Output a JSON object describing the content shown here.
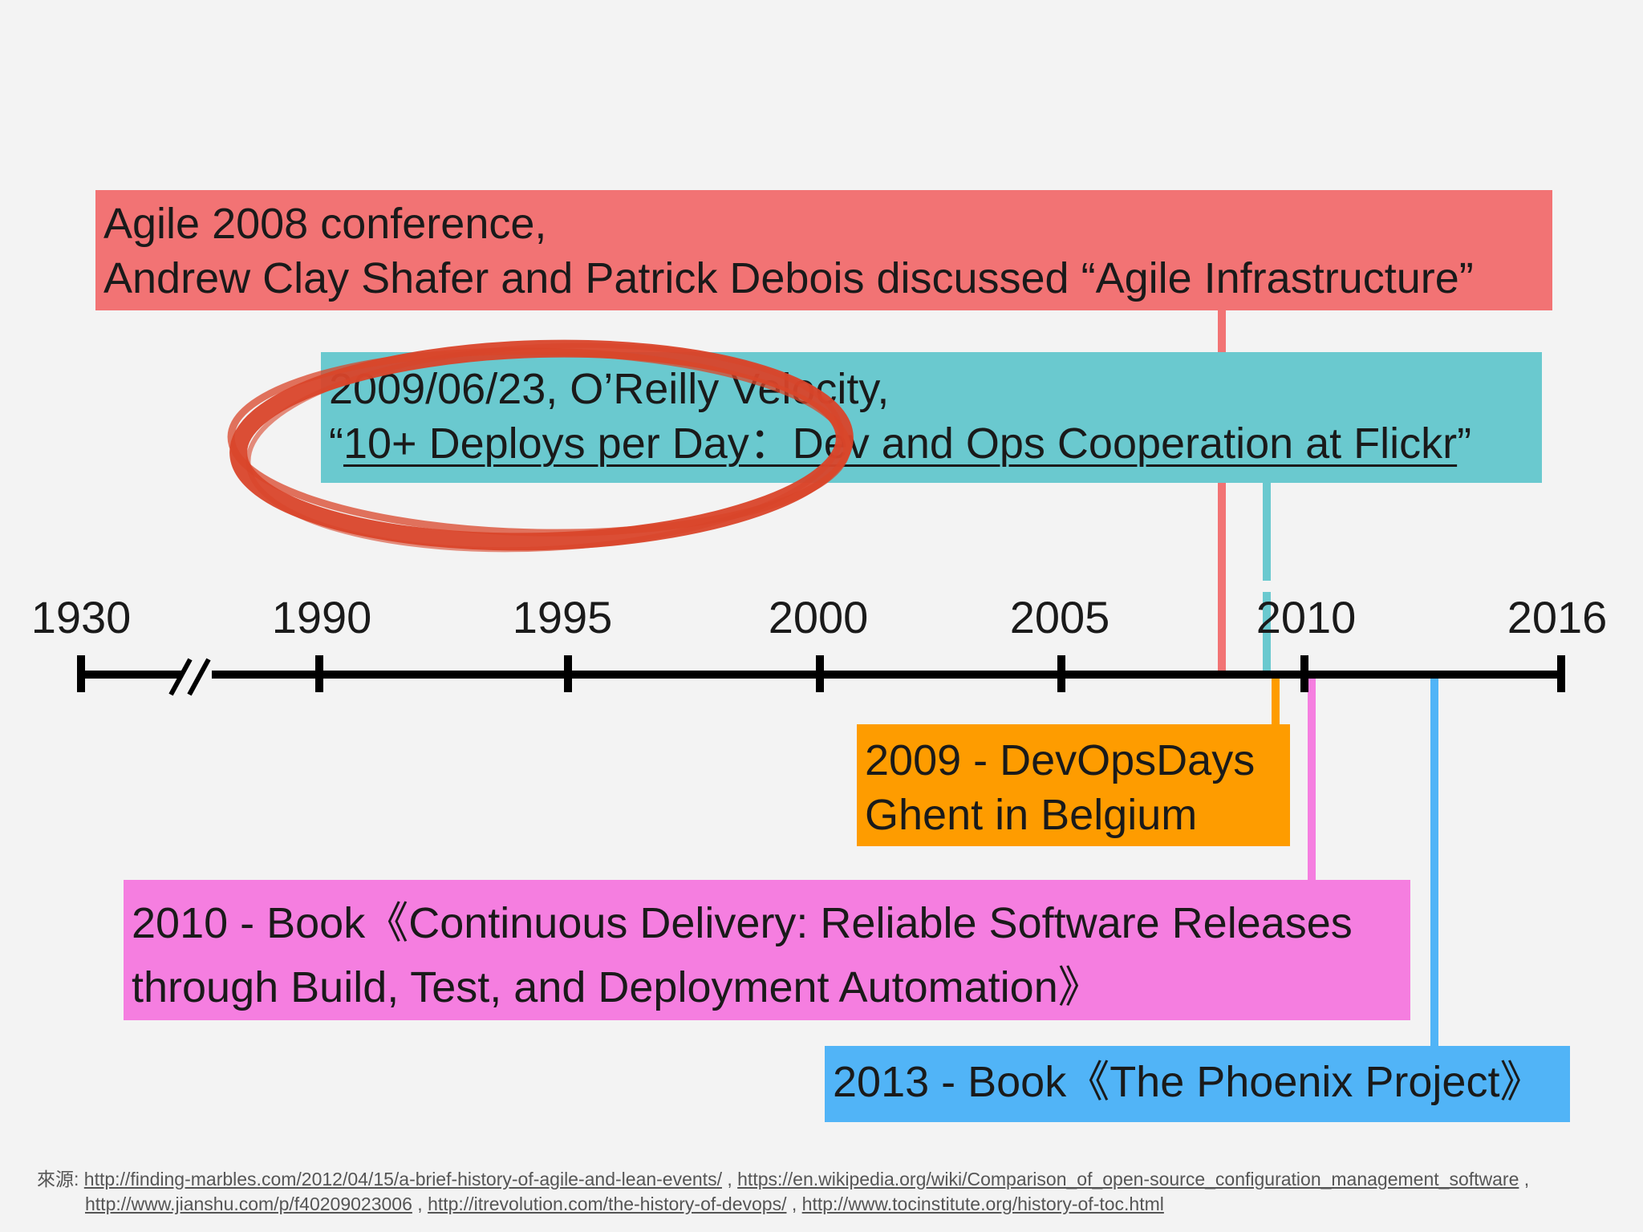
{
  "timeline": {
    "years": [
      "1930",
      "1990",
      "1995",
      "2000",
      "2005",
      "2010",
      "2016"
    ]
  },
  "events": {
    "agile_2008": {
      "line1": "Agile 2008 conference,",
      "line2": "Andrew Clay Shafer and Patrick Debois discussed “Agile Infrastructure”",
      "color": "#f27374"
    },
    "velocity_2009": {
      "line1": "2009/06/23, O’Reilly Velocity,",
      "line2_open": "“",
      "line2_link": "10+ Deploys per Day：Dev and Ops Cooperation at Flickr",
      "line2_close": "”",
      "color": "#6ac9cf"
    },
    "devopsdays_2009": {
      "line1": "2009 - DevOpsDays",
      "line2": "Ghent in Belgium",
      "color": "#fe9c00"
    },
    "cd_book_2010": {
      "line1": "2010 - Book《Continuous Delivery: Reliable Software Releases",
      "line2": "through Build, Test, and Deployment Automation》",
      "color": "#f57ee0"
    },
    "phoenix_2013": {
      "line1": "2013 - Book《The Phoenix Project》",
      "color": "#51b4f7"
    }
  },
  "highlight_color": "#d9452a",
  "sources": {
    "label": "來源:",
    "links": [
      "http://finding-marbles.com/2012/04/15/a-brief-history-of-agile-and-lean-events/",
      "https://en.wikipedia.org/wiki/Comparison_of_open-source_configuration_management_software",
      "http://www.jianshu.com/p/f40209023006",
      "http://itrevolution.com/the-history-of-devops/",
      "http://www.tocinstitute.org/history-of-toc.html"
    ],
    "separator": ","
  }
}
